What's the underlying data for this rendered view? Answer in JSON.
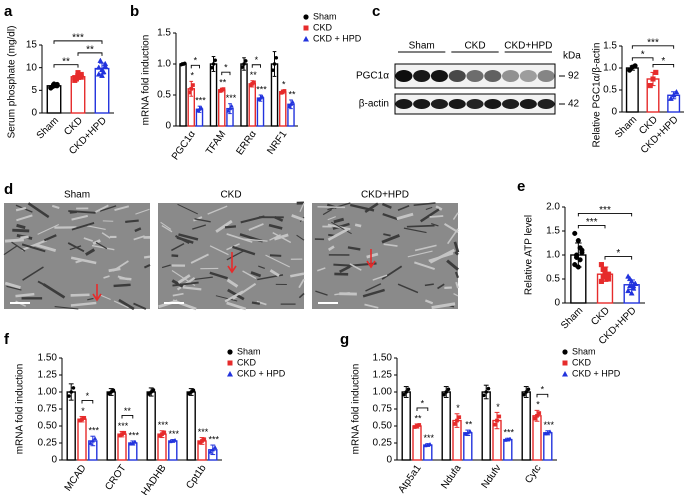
{
  "chart_data": [
    {
      "panel": "a",
      "type": "bar",
      "y_label": "Serum phosphate (mg/dl)",
      "categories": [
        "Sham",
        "CKD",
        "CKD+HPD"
      ],
      "values": [
        6.0,
        8.0,
        9.8
      ],
      "errors": [
        0.4,
        0.6,
        1.2
      ],
      "points": [
        [
          5.5,
          6.0,
          6.3,
          5.8,
          6.2,
          5.6,
          6.4,
          6.0
        ],
        [
          7.2,
          8.0,
          8.5,
          7.5,
          8.3,
          7.8,
          8.9,
          7.9
        ],
        [
          8.5,
          9.5,
          10.8,
          11.5,
          9.0,
          10.0,
          8.2,
          10.3
        ]
      ],
      "colors": [
        "#000000",
        "#e62b2b",
        "#2233dd"
      ],
      "markers": [
        "circle",
        "square",
        "triangle"
      ],
      "ylim": [
        0,
        15
      ],
      "yticks": [
        0,
        5,
        10,
        15
      ],
      "brackets": [
        {
          "from": 0,
          "to": 2,
          "label": "***"
        },
        {
          "from": 0,
          "to": 1,
          "label": "**"
        },
        {
          "from": 1,
          "to": 2,
          "label": "**"
        }
      ]
    },
    {
      "panel": "b",
      "type": "bar",
      "y_label": "mRNA fold induction",
      "categories": [
        "PGC1α",
        "TFAM",
        "ERRα",
        "NRF1"
      ],
      "series": [
        {
          "name": "Sham",
          "color": "#000000",
          "marker": "circle",
          "values": [
            1.0,
            1.0,
            1.0,
            1.0
          ],
          "errors": [
            0.02,
            0.12,
            0.1,
            0.2
          ],
          "annotations": [
            null,
            null,
            null,
            null
          ]
        },
        {
          "name": "CKD",
          "color": "#e62b2b",
          "marker": "square",
          "values": [
            0.6,
            0.58,
            0.68,
            0.55
          ],
          "errors": [
            0.12,
            0.03,
            0.05,
            0.03
          ],
          "annotations": [
            "*",
            "**",
            "**",
            "*"
          ]
        },
        {
          "name": "CKD + HPD",
          "color": "#2233dd",
          "marker": "triangle",
          "values": [
            0.27,
            0.28,
            0.45,
            0.35
          ],
          "errors": [
            0.05,
            0.08,
            0.05,
            0.07
          ],
          "annotations": [
            "***",
            "***",
            "***",
            "**"
          ]
        }
      ],
      "bracket_labels": [
        "*",
        "*",
        "*",
        null
      ],
      "ylim": [
        0,
        1.5
      ],
      "yticks": [
        0,
        0.5,
        {
          "value": 1,
          "label": "1.0"
        },
        1.5
      ]
    },
    {
      "panel": "c",
      "type": "bar",
      "y_label": "Relative PGC1α/β-actin",
      "blot": {
        "lanes": [
          "Sham",
          "CKD",
          "CKD+HPD"
        ],
        "unit": "kDa",
        "bands": [
          {
            "name": "PGC1α",
            "size": 92
          },
          {
            "name": "β-actin",
            "size": 42
          }
        ]
      },
      "categories": [
        "Sham",
        "CKD",
        "CKD+HPD"
      ],
      "values": [
        1.0,
        0.75,
        0.38
      ],
      "errors": [
        0.05,
        0.15,
        0.08
      ],
      "points": [
        [
          0.95,
          1.02,
          1.05
        ],
        [
          0.6,
          0.75,
          0.9
        ],
        [
          0.3,
          0.38,
          0.45
        ]
      ],
      "colors": [
        "#000000",
        "#e62b2b",
        "#2233dd"
      ],
      "markers": [
        "circle",
        "square",
        "triangle"
      ],
      "ylim": [
        0,
        1.5
      ],
      "yticks": [
        0,
        0.5,
        {
          "value": 1,
          "label": "1.0"
        },
        1.5
      ],
      "brackets": [
        {
          "from": 0,
          "to": 2,
          "label": "***"
        },
        {
          "from": 0,
          "to": 1,
          "label": "*"
        },
        {
          "from": 1,
          "to": 2,
          "label": "*"
        }
      ]
    },
    {
      "panel": "d",
      "type": "image",
      "categories": [
        "Sham",
        "CKD",
        "CKD+HPD"
      ]
    },
    {
      "panel": "e",
      "type": "bar",
      "y_label": "Relative ATP level",
      "categories": [
        "Sham",
        "CKD",
        "CKD+HPD"
      ],
      "values": [
        1.0,
        0.6,
        0.38
      ],
      "errors": [
        0.25,
        0.15,
        0.1
      ],
      "points": [
        [
          1.45,
          1.3,
          1.1,
          1.0,
          0.9,
          0.8,
          0.75,
          1.05,
          0.95,
          1.15
        ],
        [
          0.8,
          0.7,
          0.6,
          0.55,
          0.5,
          0.45,
          0.65,
          0.5,
          0.7,
          0.55
        ],
        [
          0.55,
          0.45,
          0.4,
          0.35,
          0.3,
          0.25,
          0.2,
          0.4,
          0.5,
          0.35
        ]
      ],
      "colors": [
        "#000000",
        "#e62b2b",
        "#2233dd"
      ],
      "markers": [
        "circle",
        "square",
        "triangle"
      ],
      "ylim": [
        0,
        2
      ],
      "yticks": [
        0,
        0.5,
        {
          "value": 1,
          "label": "1.0"
        },
        1.5,
        {
          "value": 2,
          "label": "2.0"
        }
      ],
      "brackets": [
        {
          "from": 0,
          "to": 2,
          "label": "***"
        },
        {
          "from": 0,
          "to": 1,
          "label": "***"
        },
        {
          "from": 1,
          "to": 2,
          "label": "*"
        }
      ]
    },
    {
      "panel": "f",
      "type": "bar",
      "y_label": "mRNA fold induction",
      "categories": [
        "MCAD",
        "CROT",
        "HADHB",
        "Cpt1b"
      ],
      "series": [
        {
          "name": "Sham",
          "color": "#000000",
          "marker": "circle",
          "values": [
            1.0,
            1.0,
            1.0,
            1.0
          ],
          "errors": [
            0.12,
            0.05,
            0.06,
            0.05
          ],
          "annotations": [
            null,
            null,
            null,
            null
          ]
        },
        {
          "name": "CKD",
          "color": "#e62b2b",
          "marker": "square",
          "values": [
            0.6,
            0.38,
            0.38,
            0.28
          ],
          "errors": [
            0.04,
            0.04,
            0.05,
            0.05
          ],
          "annotations": [
            "*",
            "***",
            "***",
            "***"
          ]
        },
        {
          "name": "CKD + HPD",
          "color": "#2233dd",
          "marker": "triangle",
          "values": [
            0.28,
            0.25,
            0.28,
            0.15
          ],
          "errors": [
            0.07,
            0.03,
            0.02,
            0.07
          ],
          "annotations": [
            "***",
            "***",
            "***",
            "***"
          ]
        }
      ],
      "bracket_labels": [
        "*",
        "**",
        null,
        null
      ],
      "ylim": [
        0,
        1.5
      ],
      "yticks": [
        0,
        0.25,
        {
          "value": 0.5,
          "label": "0.50"
        },
        0.75,
        {
          "value": 1,
          "label": "1.00"
        },
        1.25,
        {
          "value": 1.5,
          "label": "1.50"
        }
      ]
    },
    {
      "panel": "g",
      "type": "bar",
      "y_label": "mRNA fold induction",
      "categories": [
        "Atp5a1",
        "Ndufa",
        "Ndufv",
        "Cytc"
      ],
      "series": [
        {
          "name": "Sham",
          "color": "#000000",
          "marker": "circle",
          "values": [
            1.0,
            1.0,
            1.0,
            1.0
          ],
          "errors": [
            0.08,
            0.08,
            0.1,
            0.08
          ],
          "annotations": [
            null,
            null,
            null,
            null
          ]
        },
        {
          "name": "CKD",
          "color": "#e62b2b",
          "marker": "square",
          "values": [
            0.5,
            0.58,
            0.58,
            0.65
          ],
          "errors": [
            0.03,
            0.1,
            0.12,
            0.08
          ],
          "annotations": [
            "**",
            "*",
            "*",
            "*"
          ]
        },
        {
          "name": "CKD + HPD",
          "color": "#2233dd",
          "marker": "triangle",
          "values": [
            0.22,
            0.4,
            0.3,
            0.4
          ],
          "errors": [
            0.02,
            0.04,
            0.02,
            0.03
          ],
          "annotations": [
            "***",
            "**",
            "***",
            "***"
          ]
        }
      ],
      "bracket_labels": [
        "*",
        null,
        null,
        "*"
      ],
      "ylim": [
        0,
        1.5
      ],
      "yticks": [
        0,
        0.25,
        {
          "value": 0.5,
          "label": "0.50"
        },
        0.75,
        {
          "value": 1,
          "label": "1.00"
        },
        1.25,
        {
          "value": 1.5,
          "label": "1.50"
        }
      ]
    }
  ]
}
